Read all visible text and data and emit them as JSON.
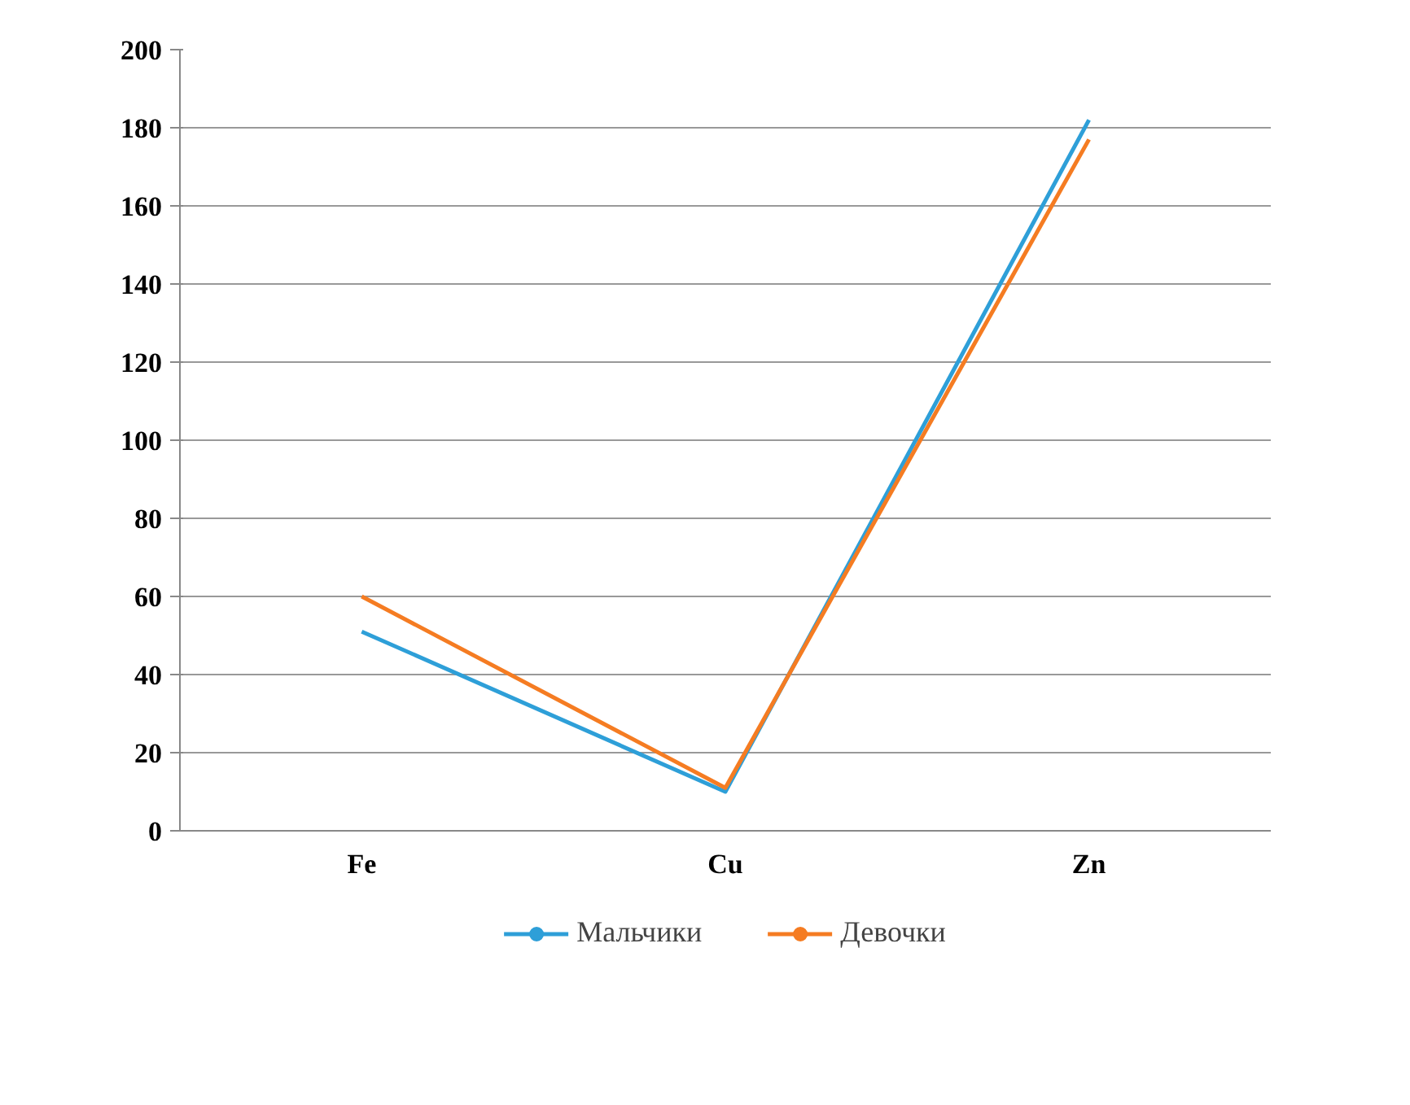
{
  "chart_data": {
    "type": "line",
    "categories": [
      "Fe",
      "Cu",
      "Zn"
    ],
    "series": [
      {
        "name": "Мальчики",
        "color": "#2e9fd8",
        "values": [
          51,
          10,
          182
        ]
      },
      {
        "name": "Девочки",
        "color": "#f57c22",
        "values": [
          60,
          11,
          177
        ]
      }
    ],
    "ylim": [
      0,
      200
    ],
    "yticks": [
      0,
      20,
      40,
      60,
      80,
      100,
      120,
      140,
      160,
      180,
      200
    ],
    "grid": "y",
    "legend": "bottom",
    "marker": "none",
    "line_style": "solid"
  }
}
